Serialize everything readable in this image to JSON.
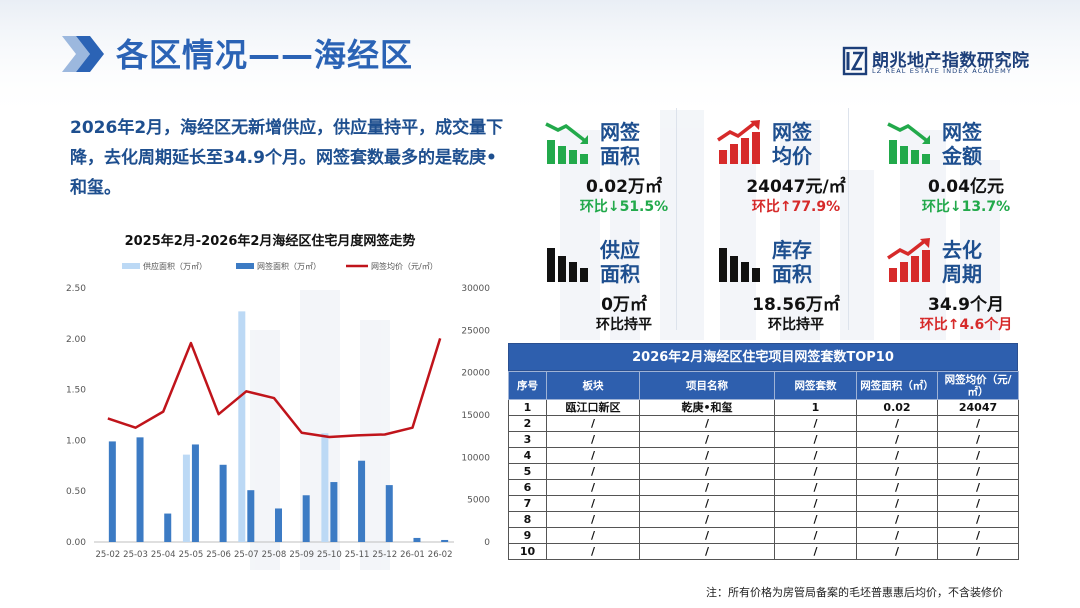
{
  "page": {
    "title": "各区情况——海经区",
    "logo_cn": "朗兆地产指数研究院",
    "logo_en": "LZ REAL ESTATE INDEX ACADEMY",
    "summary": "2026年2月，海经区无新增供应，供应量持平，成交量下降，去化周期延长至34.9个月。网签套数最多的是乾庚•和玺。",
    "note": "注：所有价格为房管局备案的毛坯普惠惠后均价，不含装修价"
  },
  "colors": {
    "accent": "#2b63b5",
    "supply_bar": "#bcd9f5",
    "signed_bar": "#3c7bc4",
    "price_line": "#c0141b",
    "up_red": "#d62a2a",
    "down_green": "#22a94b"
  },
  "kpis": [
    {
      "label": "网签面积",
      "value": "0.02万㎡",
      "change": "环比↓51.5%",
      "trend": "down",
      "icon": "trend-down-icon"
    },
    {
      "label": "网签均价",
      "value": "24047元/㎡",
      "change": "环比↑77.9%",
      "trend": "up",
      "icon": "trend-up-icon"
    },
    {
      "label": "网签金额",
      "value": "0.04亿元",
      "change": "环比↓13.7%",
      "trend": "down",
      "icon": "trend-down-icon"
    },
    {
      "label": "供应面积",
      "value": "0万㎡",
      "change": "环比持平",
      "trend": "flat",
      "icon": "bar-chart-icon"
    },
    {
      "label": "库存面积",
      "value": "18.56万㎡",
      "change": "环比持平",
      "trend": "flat",
      "icon": "bar-chart-icon"
    },
    {
      "label": "去化周期",
      "value": "34.9个月",
      "change": "环比↑4.6个月",
      "trend": "up",
      "icon": "trend-up-icon"
    }
  ],
  "table": {
    "title": "2026年2月海经区住宅项目网签套数TOP10",
    "headers": [
      "序号",
      "板块",
      "项目名称",
      "网签套数",
      "网签面积（㎡）",
      "网签均价（元/㎡）"
    ],
    "rows": [
      [
        "1",
        "瓯江口新区",
        "乾庚•和玺",
        "1",
        "0.02",
        "24047"
      ],
      [
        "2",
        "/",
        "/",
        "/",
        "/",
        "/"
      ],
      [
        "3",
        "/",
        "/",
        "/",
        "/",
        "/"
      ],
      [
        "4",
        "/",
        "/",
        "/",
        "/",
        "/"
      ],
      [
        "5",
        "/",
        "/",
        "/",
        "/",
        "/"
      ],
      [
        "6",
        "/",
        "/",
        "/",
        "/",
        "/"
      ],
      [
        "7",
        "/",
        "/",
        "/",
        "/",
        "/"
      ],
      [
        "8",
        "/",
        "/",
        "/",
        "/",
        "/"
      ],
      [
        "9",
        "/",
        "/",
        "/",
        "/",
        "/"
      ],
      [
        "10",
        "/",
        "/",
        "/",
        "/",
        "/"
      ]
    ]
  },
  "chart_data": {
    "type": "bar",
    "title": "2025年2月-2026年2月海经区住宅月度网签走势",
    "categories": [
      "25-02",
      "25-03",
      "25-04",
      "25-05",
      "25-06",
      "25-07",
      "25-08",
      "25-09",
      "25-10",
      "25-11",
      "25-12",
      "26-01",
      "26-02"
    ],
    "series": [
      {
        "name": "供应面积（万㎡）",
        "type": "bar",
        "axis": "left",
        "values": [
          0,
          0,
          0,
          0.86,
          0,
          2.27,
          0,
          0,
          1.07,
          0,
          0,
          0,
          0
        ]
      },
      {
        "name": "网签面积（万㎡）",
        "type": "bar",
        "axis": "left",
        "values": [
          0.99,
          1.03,
          0.28,
          0.96,
          0.76,
          0.51,
          0.33,
          0.46,
          0.59,
          0.8,
          0.56,
          0.04,
          0.02
        ]
      },
      {
        "name": "网签均价（元/㎡）",
        "type": "line",
        "axis": "right",
        "values": [
          14600,
          13500,
          15400,
          23500,
          15100,
          17800,
          17000,
          12900,
          12400,
          12600,
          12700,
          13500,
          24047
        ]
      }
    ],
    "y_left": {
      "range": [
        0,
        2.5
      ],
      "ticks": [
        "0.00",
        "0.50",
        "1.00",
        "1.50",
        "2.00",
        "2.50"
      ]
    },
    "y_right": {
      "range": [
        0,
        30000
      ],
      "ticks": [
        "0",
        "5000",
        "10000",
        "15000",
        "20000",
        "25000",
        "30000"
      ]
    },
    "legend_position": "top",
    "grid": false
  }
}
